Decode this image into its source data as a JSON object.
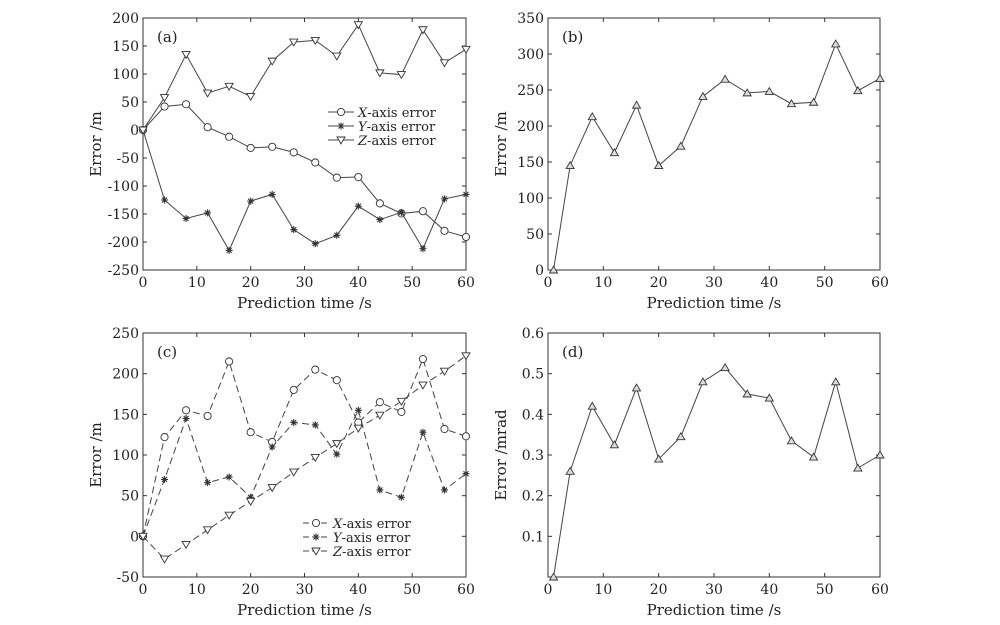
{
  "chart_data": [
    {
      "panel_label": "(a)",
      "type": "line",
      "xlabel": "Prediction time /s",
      "ylabel": "Error /m",
      "xlim": [
        0,
        60
      ],
      "ylim": [
        -250,
        200
      ],
      "xticks": [
        0,
        10,
        20,
        30,
        40,
        50,
        60
      ],
      "yticks": [
        -250,
        -200,
        -150,
        -100,
        -50,
        0,
        50,
        100,
        150,
        200
      ],
      "legend": "center-right",
      "dashed": false,
      "x": [
        0,
        4,
        8,
        12,
        16,
        20,
        24,
        28,
        32,
        36,
        40,
        44,
        48,
        52,
        56,
        60
      ],
      "series": [
        {
          "name": "X-axis error",
          "axis": "X",
          "suffix": "-axis error",
          "marker": "circle",
          "values": [
            0,
            42,
            46,
            5,
            -12,
            -32,
            -30,
            -40,
            -58,
            -85,
            -84,
            -131,
            -149,
            -145,
            -180,
            -191
          ]
        },
        {
          "name": "Y-axis error",
          "axis": "Y",
          "suffix": "-axis error",
          "marker": "star",
          "values": [
            0,
            -125,
            -158,
            -148,
            -215,
            -127,
            -115,
            -178,
            -203,
            -188,
            -136,
            -160,
            -147,
            -212,
            -123,
            -115
          ]
        },
        {
          "name": "Z-axis error",
          "axis": "Z",
          "suffix": "-axis error",
          "marker": "triangle-down",
          "values": [
            0,
            58,
            135,
            66,
            78,
            60,
            123,
            157,
            160,
            132,
            188,
            102,
            99,
            179,
            120,
            144
          ]
        }
      ]
    },
    {
      "panel_label": "(b)",
      "type": "line",
      "xlabel": "Prediction time /s",
      "ylabel": "Error /m",
      "xlim": [
        0,
        60
      ],
      "ylim": [
        0,
        350
      ],
      "xticks": [
        0,
        10,
        20,
        30,
        40,
        50,
        60
      ],
      "yticks": [
        0,
        50,
        100,
        150,
        200,
        250,
        300,
        350
      ],
      "legend": "none",
      "dashed": false,
      "x": [
        1,
        4,
        8,
        12,
        16,
        20,
        24,
        28,
        32,
        36,
        40,
        44,
        48,
        52,
        56,
        60
      ],
      "series": [
        {
          "name": "Error",
          "marker": "triangle-up",
          "values": [
            0,
            145,
            213,
            163,
            229,
            145,
            172,
            241,
            265,
            246,
            248,
            231,
            233,
            314,
            249,
            266
          ]
        }
      ]
    },
    {
      "panel_label": "(c)",
      "type": "line",
      "xlabel": "Prediction time /s",
      "ylabel": "Error /m",
      "xlim": [
        0,
        60
      ],
      "ylim": [
        -50,
        250
      ],
      "xticks": [
        0,
        10,
        20,
        30,
        40,
        50,
        60
      ],
      "yticks": [
        -50,
        0,
        50,
        100,
        150,
        200,
        250
      ],
      "legend": "bottom-right",
      "dashed": true,
      "x": [
        0,
        4,
        8,
        12,
        16,
        20,
        24,
        28,
        32,
        36,
        40,
        44,
        48,
        52,
        56,
        60
      ],
      "series": [
        {
          "name": "X-axis error",
          "axis": "X",
          "suffix": "-axis error",
          "marker": "circle",
          "values": [
            0,
            122,
            155,
            148,
            215,
            128,
            116,
            180,
            205,
            192,
            140,
            165,
            153,
            218,
            132,
            123
          ]
        },
        {
          "name": "Y-axis error",
          "axis": "Y",
          "suffix": "-axis error",
          "marker": "star",
          "values": [
            0,
            70,
            145,
            66,
            73,
            48,
            110,
            140,
            137,
            101,
            155,
            57,
            48,
            128,
            57,
            77
          ]
        },
        {
          "name": "Z-axis error",
          "axis": "Z",
          "suffix": "-axis error",
          "marker": "triangle-down",
          "values": [
            0,
            -28,
            -10,
            8,
            26,
            43,
            60,
            79,
            97,
            114,
            133,
            149,
            166,
            186,
            203,
            222
          ]
        }
      ]
    },
    {
      "panel_label": "(d)",
      "type": "line",
      "xlabel": "Prediction time /s",
      "ylabel": "Error /mrad",
      "xlim": [
        0,
        60
      ],
      "ylim": [
        0,
        0.6
      ],
      "xticks": [
        0,
        10,
        20,
        30,
        40,
        50,
        60
      ],
      "yticks": [
        0.1,
        0.2,
        0.3,
        0.4,
        0.5,
        0.6
      ],
      "legend": "none",
      "dashed": false,
      "x": [
        1,
        4,
        8,
        12,
        16,
        20,
        24,
        28,
        32,
        36,
        40,
        44,
        48,
        52,
        56,
        60
      ],
      "series": [
        {
          "name": "Error",
          "marker": "triangle-up",
          "values": [
            0,
            0.26,
            0.42,
            0.325,
            0.465,
            0.29,
            0.345,
            0.48,
            0.515,
            0.45,
            0.44,
            0.335,
            0.295,
            0.48,
            0.268,
            0.3
          ]
        }
      ]
    }
  ]
}
